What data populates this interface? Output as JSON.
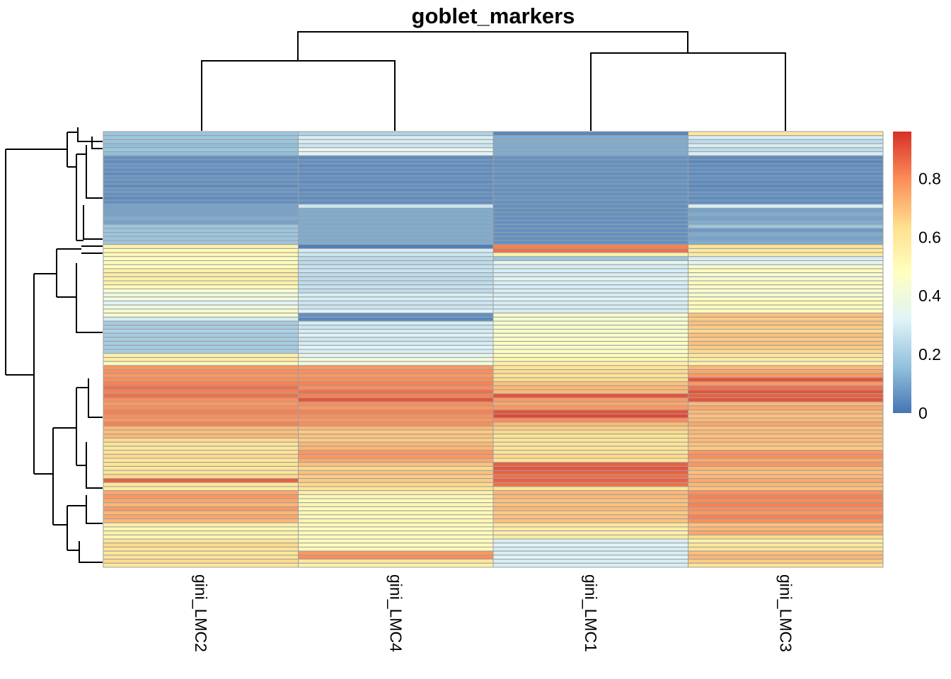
{
  "chart_data": {
    "type": "heatmap",
    "title": "goblet_markers",
    "columns": [
      "gini_LMC2",
      "gini_LMC4",
      "gini_LMC1",
      "gini_LMC3"
    ],
    "legend": {
      "position": "right",
      "range": [
        0,
        0.96
      ],
      "ticks": [
        0,
        0.2,
        0.4,
        0.6,
        0.8
      ],
      "colors": [
        "#4575b4",
        "#91bfdb",
        "#e0f3f8",
        "#ffffbf",
        "#fee090",
        "#fc8d59",
        "#d73027"
      ]
    },
    "grid": true,
    "row_clusters": [
      {
        "rows": 6,
        "values": [
          [
            0.18,
            0.22,
            0.04,
            0.6
          ],
          [
            0.18,
            0.3,
            0.12,
            0.3
          ],
          [
            0.18,
            0.3,
            0.12,
            0.25
          ],
          [
            0.16,
            0.28,
            0.12,
            0.3
          ],
          [
            0.18,
            0.35,
            0.12,
            0.25
          ],
          [
            0.16,
            0.32,
            0.12,
            0.3
          ]
        ]
      },
      {
        "rows": 12,
        "values": [
          [
            0.06,
            0.05,
            0.07,
            0.05
          ],
          [
            0.05,
            0.06,
            0.06,
            0.04
          ],
          [
            0.07,
            0.05,
            0.06,
            0.05
          ],
          [
            0.06,
            0.06,
            0.07,
            0.06
          ],
          [
            0.05,
            0.05,
            0.06,
            0.05
          ],
          [
            0.07,
            0.06,
            0.06,
            0.06
          ],
          [
            0.06,
            0.05,
            0.07,
            0.05
          ],
          [
            0.05,
            0.06,
            0.06,
            0.04
          ],
          [
            0.07,
            0.05,
            0.06,
            0.05
          ],
          [
            0.06,
            0.06,
            0.06,
            0.06
          ],
          [
            0.05,
            0.05,
            0.07,
            0.05
          ],
          [
            0.06,
            0.06,
            0.06,
            0.06
          ]
        ]
      },
      {
        "rows": 10,
        "values": [
          [
            0.1,
            0.28,
            0.06,
            0.3
          ],
          [
            0.1,
            0.12,
            0.06,
            0.1
          ],
          [
            0.1,
            0.12,
            0.06,
            0.12
          ],
          [
            0.12,
            0.12,
            0.06,
            0.1
          ],
          [
            0.1,
            0.12,
            0.06,
            0.12
          ],
          [
            0.18,
            0.12,
            0.06,
            0.18
          ],
          [
            0.18,
            0.12,
            0.06,
            0.08
          ],
          [
            0.18,
            0.12,
            0.06,
            0.12
          ],
          [
            0.18,
            0.12,
            0.06,
            0.1
          ],
          [
            0.18,
            0.12,
            0.06,
            0.12
          ]
        ]
      },
      {
        "rows": 17,
        "values": [
          [
            0.55,
            0.02,
            0.82,
            0.62
          ],
          [
            0.5,
            0.3,
            0.85,
            0.6
          ],
          [
            0.52,
            0.28,
            0.55,
            0.58
          ],
          [
            0.48,
            0.25,
            0.18,
            0.3
          ],
          [
            0.5,
            0.25,
            0.35,
            0.35
          ],
          [
            0.48,
            0.27,
            0.3,
            0.42
          ],
          [
            0.55,
            0.27,
            0.3,
            0.5
          ],
          [
            0.58,
            0.25,
            0.3,
            0.45
          ],
          [
            0.55,
            0.25,
            0.33,
            0.42
          ],
          [
            0.55,
            0.25,
            0.3,
            0.5
          ],
          [
            0.5,
            0.27,
            0.3,
            0.45
          ],
          [
            0.45,
            0.25,
            0.3,
            0.45
          ],
          [
            0.38,
            0.3,
            0.3,
            0.42
          ],
          [
            0.42,
            0.3,
            0.33,
            0.48
          ],
          [
            0.32,
            0.28,
            0.3,
            0.5
          ],
          [
            0.4,
            0.28,
            0.3,
            0.48
          ],
          [
            0.42,
            0.32,
            0.3,
            0.48
          ]
        ]
      },
      {
        "rows": 13,
        "values": [
          [
            0.45,
            0.06,
            0.45,
            0.7
          ],
          [
            0.3,
            0.04,
            0.42,
            0.68
          ],
          [
            0.2,
            0.3,
            0.45,
            0.7
          ],
          [
            0.2,
            0.28,
            0.45,
            0.68
          ],
          [
            0.22,
            0.3,
            0.45,
            0.65
          ],
          [
            0.2,
            0.32,
            0.45,
            0.7
          ],
          [
            0.2,
            0.28,
            0.45,
            0.68
          ],
          [
            0.2,
            0.3,
            0.48,
            0.7
          ],
          [
            0.2,
            0.32,
            0.45,
            0.68
          ],
          [
            0.2,
            0.3,
            0.48,
            0.65
          ],
          [
            0.55,
            0.35,
            0.5,
            0.6
          ],
          [
            0.58,
            0.4,
            0.52,
            0.58
          ],
          [
            0.5,
            0.4,
            0.55,
            0.55
          ]
        ]
      },
      {
        "rows": 21,
        "values": [
          [
            0.78,
            0.78,
            0.62,
            0.72
          ],
          [
            0.8,
            0.8,
            0.65,
            0.75
          ],
          [
            0.78,
            0.78,
            0.62,
            0.78
          ],
          [
            0.8,
            0.8,
            0.65,
            0.9
          ],
          [
            0.82,
            0.82,
            0.7,
            0.78
          ],
          [
            0.85,
            0.8,
            0.72,
            0.85
          ],
          [
            0.82,
            0.85,
            0.72,
            0.9
          ],
          [
            0.85,
            0.82,
            0.9,
            0.88
          ],
          [
            0.8,
            0.9,
            0.78,
            0.9
          ],
          [
            0.78,
            0.8,
            0.75,
            0.72
          ],
          [
            0.8,
            0.78,
            0.78,
            0.75
          ],
          [
            0.82,
            0.82,
            0.9,
            0.72
          ],
          [
            0.8,
            0.8,
            0.92,
            0.7
          ],
          [
            0.78,
            0.78,
            0.8,
            0.72
          ],
          [
            0.82,
            0.8,
            0.72,
            0.75
          ],
          [
            0.72,
            0.72,
            0.68,
            0.7
          ],
          [
            0.7,
            0.68,
            0.65,
            0.72
          ],
          [
            0.72,
            0.7,
            0.62,
            0.7
          ],
          [
            0.65,
            0.68,
            0.62,
            0.72
          ],
          [
            0.62,
            0.72,
            0.62,
            0.7
          ],
          [
            0.6,
            0.72,
            0.62,
            0.68
          ]
        ]
      },
      {
        "rows": 10,
        "values": [
          [
            0.62,
            0.78,
            0.62,
            0.78
          ],
          [
            0.65,
            0.78,
            0.65,
            0.8
          ],
          [
            0.6,
            0.75,
            0.62,
            0.75
          ],
          [
            0.62,
            0.7,
            0.88,
            0.78
          ],
          [
            0.6,
            0.65,
            0.9,
            0.72
          ],
          [
            0.62,
            0.7,
            0.88,
            0.7
          ],
          [
            0.65,
            0.68,
            0.85,
            0.72
          ],
          [
            0.88,
            0.68,
            0.88,
            0.75
          ],
          [
            0.6,
            0.65,
            0.85,
            0.72
          ],
          [
            0.58,
            0.62,
            0.62,
            0.7
          ]
        ]
      },
      {
        "rows": 12,
        "values": [
          [
            0.75,
            0.55,
            0.72,
            0.8
          ],
          [
            0.78,
            0.52,
            0.72,
            0.82
          ],
          [
            0.75,
            0.5,
            0.7,
            0.8
          ],
          [
            0.72,
            0.52,
            0.7,
            0.82
          ],
          [
            0.78,
            0.5,
            0.72,
            0.8
          ],
          [
            0.72,
            0.52,
            0.68,
            0.78
          ],
          [
            0.75,
            0.5,
            0.7,
            0.82
          ],
          [
            0.72,
            0.52,
            0.7,
            0.8
          ],
          [
            0.55,
            0.5,
            0.6,
            0.7
          ],
          [
            0.52,
            0.48,
            0.58,
            0.72
          ],
          [
            0.55,
            0.5,
            0.55,
            0.75
          ],
          [
            0.52,
            0.48,
            0.58,
            0.65
          ]
        ]
      },
      {
        "rows": 7,
        "values": [
          [
            0.62,
            0.5,
            0.3,
            0.55
          ],
          [
            0.65,
            0.48,
            0.32,
            0.6
          ],
          [
            0.62,
            0.5,
            0.3,
            0.62
          ],
          [
            0.6,
            0.78,
            0.3,
            0.7
          ],
          [
            0.62,
            0.8,
            0.32,
            0.72
          ],
          [
            0.65,
            0.6,
            0.3,
            0.68
          ],
          [
            0.6,
            0.55,
            0.3,
            0.62
          ]
        ]
      }
    ]
  }
}
